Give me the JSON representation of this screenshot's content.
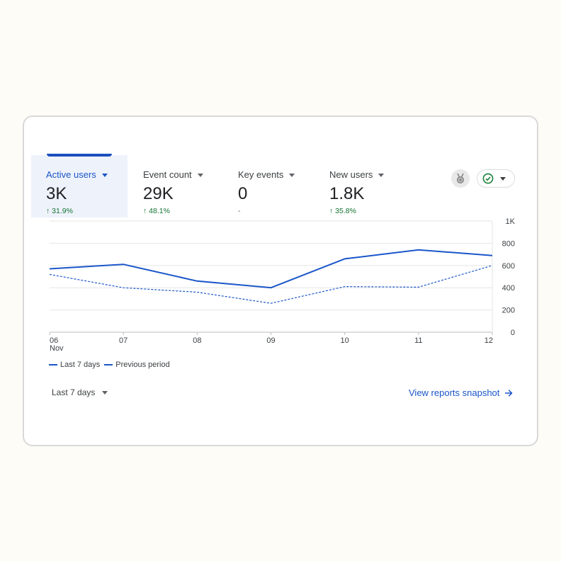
{
  "metrics": [
    {
      "label": "Active users",
      "value": "3K",
      "delta": "↑ 31.9%",
      "active": true
    },
    {
      "label": "Event count",
      "value": "29K",
      "delta": "↑ 48.1%",
      "active": false
    },
    {
      "label": "Key events",
      "value": "0",
      "delta": "-",
      "active": false
    },
    {
      "label": "New users",
      "value": "1.8K",
      "delta": "↑ 35.8%",
      "active": false
    }
  ],
  "controls": {
    "medal_icon": "medal-icon",
    "status_icon": "check-circle-icon"
  },
  "chart_data": {
    "type": "line",
    "x": [
      "06",
      "07",
      "08",
      "09",
      "10",
      "11",
      "12"
    ],
    "x_sublabel": "Nov",
    "y_ticks": [
      "0",
      "200",
      "400",
      "600",
      "800",
      "1K"
    ],
    "ylim": [
      0,
      1000
    ],
    "grid": true,
    "legend_position": "bottom-left",
    "series": [
      {
        "name": "Last 7 days",
        "style": "solid",
        "color": "#1a56c9",
        "values": [
          570,
          610,
          460,
          400,
          660,
          740,
          690
        ]
      },
      {
        "name": "Previous period",
        "style": "dashed",
        "color": "#1a56c9",
        "values": [
          520,
          400,
          360,
          260,
          410,
          405,
          600
        ]
      }
    ]
  },
  "footer": {
    "range_label": "Last 7 days",
    "snapshot_link": "View reports snapshot"
  }
}
